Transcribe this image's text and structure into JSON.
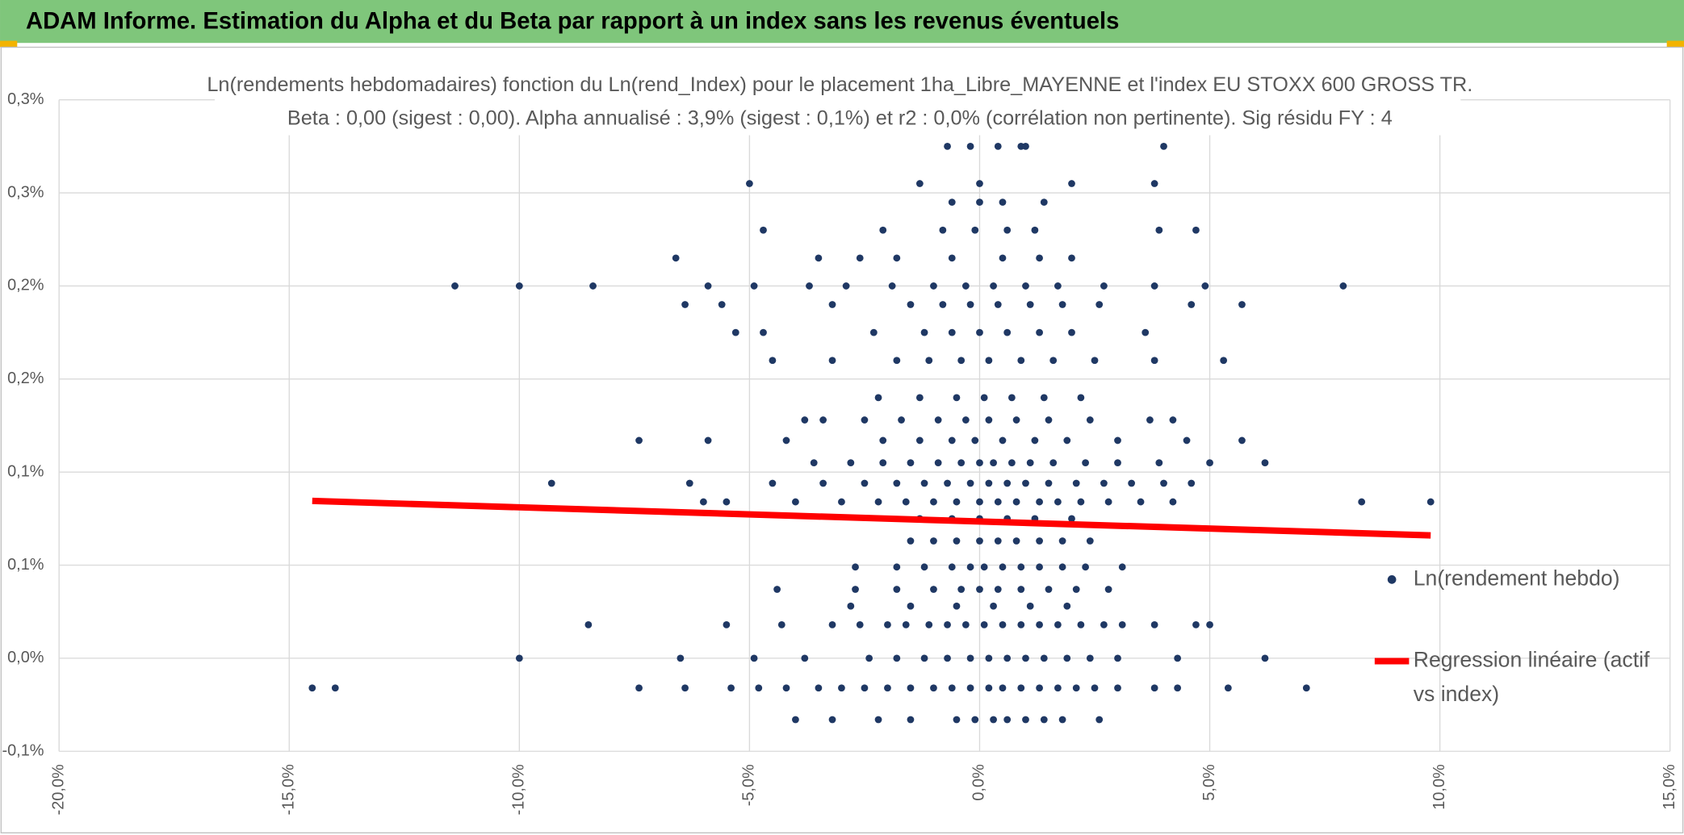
{
  "header": {
    "title": "ADAM Informe. Estimation du Alpha et du Beta par rapport à un index sans les revenus éventuels"
  },
  "chart_data": {
    "type": "scatter",
    "title": "Ln(rendements hebdomadaires) fonction du Ln(rend_Index) pour le placement 1ha_Libre_MAYENNE et l'index EU STOXX 600 GROSS TR.",
    "subtitle": "Beta : 0,00 (sigest : 0,00). Alpha annualisé : 3,9% (sigest : 0,1%) et r2 : 0,0% (corrélation non pertinente). Sig résidu FY : 4",
    "xlim": [
      -20,
      15
    ],
    "xticks": [
      {
        "value": -20,
        "label": "-20,0%"
      },
      {
        "value": -15,
        "label": "-15,0%"
      },
      {
        "value": -10,
        "label": "-10,0%"
      },
      {
        "value": -5,
        "label": "-5,0%"
      },
      {
        "value": 0,
        "label": "0,0%"
      },
      {
        "value": 5,
        "label": "5,0%"
      },
      {
        "value": 10,
        "label": "10,0%"
      },
      {
        "value": 15,
        "label": "15,0%"
      }
    ],
    "ylim": [
      -0.05,
      0.3
    ],
    "yticks": [
      {
        "value": -0.05,
        "label": "-0,1%"
      },
      {
        "value": 0,
        "label": "0,0%"
      },
      {
        "value": 0.05,
        "label": "0,1%"
      },
      {
        "value": 0.1,
        "label": "0,1%"
      },
      {
        "value": 0.15,
        "label": "0,2%"
      },
      {
        "value": 0.2,
        "label": "0,2%"
      },
      {
        "value": 0.25,
        "label": "0,3%"
      },
      {
        "value": 0.3,
        "label": "0,3%"
      }
    ],
    "grid": true,
    "legend": "right",
    "series": [
      {
        "name": "Ln(rendement hebdo)",
        "color": "#1f3864",
        "kind": "points",
        "x": [
          -4,
          -3.2,
          -2.2,
          -1.5,
          -0.5,
          -0.1,
          0.3,
          0.6,
          1,
          1.4,
          1.8,
          2.6,
          -14.5,
          -14,
          -7.4,
          -6.4,
          -5.4,
          -4.8,
          -4.2,
          -3.5,
          -3,
          -2.5,
          -2,
          -1.5,
          -1,
          -0.6,
          -0.2,
          0.2,
          0.5,
          0.9,
          1.3,
          1.7,
          2.1,
          2.5,
          3,
          3.8,
          4.3,
          5.4,
          7.1,
          -10,
          -6.5,
          -4.9,
          -3.8,
          -2.4,
          -1.8,
          -1.2,
          -0.7,
          -0.2,
          0.2,
          0.6,
          1,
          1.4,
          1.9,
          2.4,
          3,
          4.3,
          6.2,
          -8.5,
          -5.5,
          -4.3,
          -3.2,
          -2.6,
          -2,
          -1.6,
          -1.1,
          -0.7,
          -0.3,
          0.1,
          0.5,
          0.9,
          1.3,
          1.7,
          2.2,
          2.7,
          3.1,
          3.8,
          4.7,
          5,
          -2.8,
          -1.5,
          -0.5,
          0.3,
          1.1,
          1.9,
          -4.4,
          -2.7,
          -1.8,
          -1,
          -0.4,
          0,
          0.4,
          0.9,
          1.5,
          2.1,
          2.8,
          -2.7,
          -1.8,
          -1.2,
          -0.6,
          -0.2,
          0.1,
          0.5,
          0.9,
          1.3,
          1.8,
          2.3,
          3.1,
          -1.5,
          -1,
          -0.5,
          0,
          0.4,
          0.8,
          1.3,
          1.8,
          2.4,
          -1.3,
          -0.6,
          0,
          0.6,
          1.2,
          2,
          -6,
          -5.5,
          -4,
          -3,
          -2.2,
          -1.6,
          -1,
          -0.5,
          0,
          0.4,
          0.8,
          1.3,
          1.7,
          2.2,
          2.8,
          3.5,
          4.2,
          8.3,
          9.8,
          -9.3,
          -6.3,
          -4.5,
          -3.4,
          -2.5,
          -1.8,
          -1.2,
          -0.7,
          -0.2,
          0.2,
          0.6,
          1,
          1.5,
          2.1,
          2.7,
          3.3,
          4,
          4.6,
          -3.6,
          -2.8,
          -2.1,
          -1.5,
          -0.9,
          -0.4,
          0,
          0.3,
          0.7,
          1.1,
          1.6,
          2.3,
          3,
          3.9,
          5,
          6.2,
          -7.4,
          -5.9,
          -4.2,
          -2.1,
          -1.3,
          -0.6,
          -0.1,
          0.5,
          1.2,
          1.9,
          3,
          4.5,
          5.7,
          -3.8,
          -3.4,
          -2.5,
          -1.7,
          -0.9,
          -0.3,
          0.2,
          0.8,
          1.5,
          2.4,
          3.7,
          4.2,
          -2.2,
          -1.3,
          -0.5,
          0.1,
          0.7,
          1.4,
          2.2,
          -4.5,
          -3.2,
          -1.8,
          -1.1,
          -0.4,
          0.2,
          0.9,
          1.6,
          2.5,
          3.8,
          5.3,
          -5.3,
          -4.7,
          -2.3,
          -1.2,
          -0.6,
          0,
          0.6,
          1.3,
          2,
          3.6,
          -6.4,
          -5.6,
          -3.2,
          -1.5,
          -0.8,
          -0.2,
          0.4,
          1.1,
          1.8,
          2.6,
          4.6,
          5.7,
          -11.4,
          -10,
          -8.4,
          -5.9,
          -4.9,
          -3.7,
          -2.9,
          -1.9,
          -1,
          -0.3,
          0.3,
          1,
          1.7,
          2.7,
          3.8,
          4.9,
          7.9,
          -6.6,
          -3.5,
          -2.6,
          -1.8,
          -0.6,
          0.5,
          1.3,
          2,
          -4.7,
          -2.1,
          -0.8,
          -0.1,
          0.6,
          1.2,
          3.9,
          4.7,
          -0.6,
          0,
          0.5,
          1.4,
          -5,
          -1.3,
          0,
          2,
          3.8,
          -0.7,
          -0.2,
          0.4,
          0.9,
          1,
          4
        ],
        "values": [
          -0.033,
          -0.033,
          -0.033,
          -0.033,
          -0.033,
          -0.033,
          -0.033,
          -0.033,
          -0.033,
          -0.033,
          -0.033,
          -0.033,
          -0.016,
          -0.016,
          -0.016,
          -0.016,
          -0.016,
          -0.016,
          -0.016,
          -0.016,
          -0.016,
          -0.016,
          -0.016,
          -0.016,
          -0.016,
          -0.016,
          -0.016,
          -0.016,
          -0.016,
          -0.016,
          -0.016,
          -0.016,
          -0.016,
          -0.016,
          -0.016,
          -0.016,
          -0.016,
          -0.016,
          -0.016,
          0,
          0,
          0,
          0,
          0,
          0,
          0,
          0,
          0,
          0,
          0,
          0,
          0,
          0,
          0,
          0,
          0,
          0,
          0.018,
          0.018,
          0.018,
          0.018,
          0.018,
          0.018,
          0.018,
          0.018,
          0.018,
          0.018,
          0.018,
          0.018,
          0.018,
          0.018,
          0.018,
          0.018,
          0.018,
          0.018,
          0.018,
          0.018,
          0.018,
          0.028,
          0.028,
          0.028,
          0.028,
          0.028,
          0.028,
          0.037,
          0.037,
          0.037,
          0.037,
          0.037,
          0.037,
          0.037,
          0.037,
          0.037,
          0.037,
          0.037,
          0.049,
          0.049,
          0.049,
          0.049,
          0.049,
          0.049,
          0.049,
          0.049,
          0.049,
          0.049,
          0.049,
          0.049,
          0.063,
          0.063,
          0.063,
          0.063,
          0.063,
          0.063,
          0.063,
          0.063,
          0.063,
          0.075,
          0.075,
          0.075,
          0.075,
          0.075,
          0.075,
          0.084,
          0.084,
          0.084,
          0.084,
          0.084,
          0.084,
          0.084,
          0.084,
          0.084,
          0.084,
          0.084,
          0.084,
          0.084,
          0.084,
          0.084,
          0.084,
          0.084,
          0.084,
          0.084,
          0.094,
          0.094,
          0.094,
          0.094,
          0.094,
          0.094,
          0.094,
          0.094,
          0.094,
          0.094,
          0.094,
          0.094,
          0.094,
          0.094,
          0.094,
          0.094,
          0.094,
          0.094,
          0.105,
          0.105,
          0.105,
          0.105,
          0.105,
          0.105,
          0.105,
          0.105,
          0.105,
          0.105,
          0.105,
          0.105,
          0.105,
          0.105,
          0.105,
          0.105,
          0.117,
          0.117,
          0.117,
          0.117,
          0.117,
          0.117,
          0.117,
          0.117,
          0.117,
          0.117,
          0.117,
          0.117,
          0.117,
          0.128,
          0.128,
          0.128,
          0.128,
          0.128,
          0.128,
          0.128,
          0.128,
          0.128,
          0.128,
          0.128,
          0.128,
          0.14,
          0.14,
          0.14,
          0.14,
          0.14,
          0.14,
          0.14,
          0.16,
          0.16,
          0.16,
          0.16,
          0.16,
          0.16,
          0.16,
          0.16,
          0.16,
          0.16,
          0.16,
          0.175,
          0.175,
          0.175,
          0.175,
          0.175,
          0.175,
          0.175,
          0.175,
          0.175,
          0.175,
          0.19,
          0.19,
          0.19,
          0.19,
          0.19,
          0.19,
          0.19,
          0.19,
          0.19,
          0.19,
          0.19,
          0.19,
          0.2,
          0.2,
          0.2,
          0.2,
          0.2,
          0.2,
          0.2,
          0.2,
          0.2,
          0.2,
          0.2,
          0.2,
          0.2,
          0.2,
          0.2,
          0.2,
          0.2,
          0.215,
          0.215,
          0.215,
          0.215,
          0.215,
          0.215,
          0.215,
          0.215,
          0.23,
          0.23,
          0.23,
          0.23,
          0.23,
          0.23,
          0.23,
          0.23,
          0.245,
          0.245,
          0.245,
          0.245,
          0.255,
          0.255,
          0.255,
          0.255,
          0.255,
          0.275,
          0.275,
          0.275,
          0.275,
          0.275,
          0.275
        ]
      },
      {
        "name": "Regression linéaire (actif vs index)",
        "color": "#ff0000",
        "kind": "line",
        "x": [
          -14.5,
          9.8
        ],
        "values": [
          0.0845,
          0.066
        ]
      }
    ]
  }
}
